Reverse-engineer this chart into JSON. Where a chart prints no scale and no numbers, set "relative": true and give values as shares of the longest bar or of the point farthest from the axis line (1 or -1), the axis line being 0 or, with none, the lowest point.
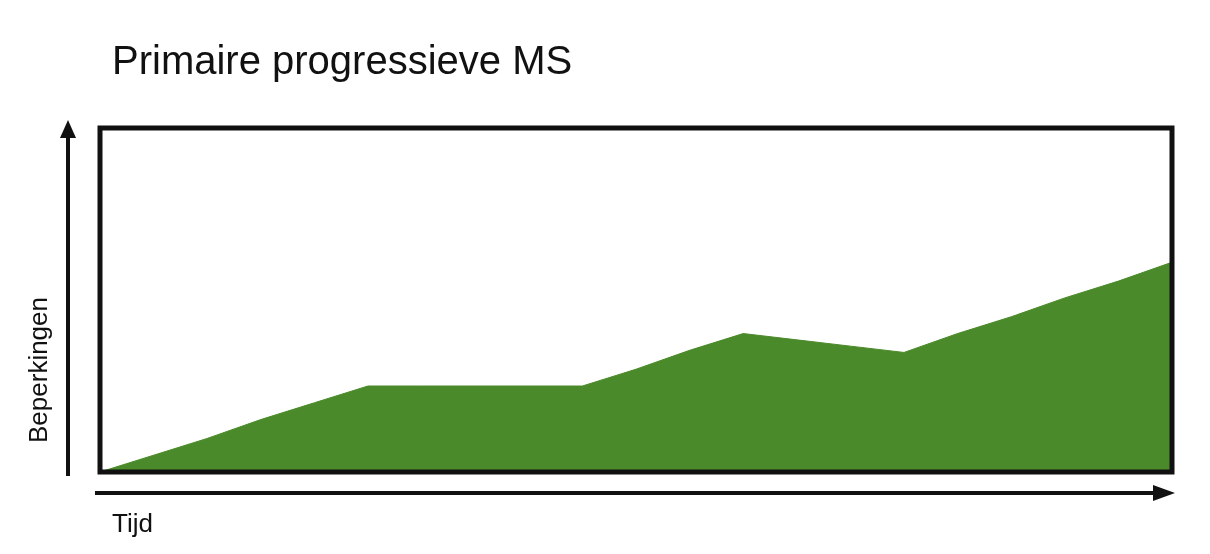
{
  "chart_data": {
    "type": "area",
    "title": "Primaire progressieve MS",
    "xlabel": "Tijd",
    "ylabel": "Beperkingen",
    "relative": true,
    "categories": [
      null,
      null,
      null,
      null,
      null,
      null,
      null,
      null,
      null,
      null,
      null,
      null,
      null,
      null,
      null,
      null,
      null,
      null,
      null,
      null,
      null
    ],
    "series": [
      {
        "color": "#4a8a2a",
        "values": [
          0,
          0.08,
          0.16,
          0.25,
          0.33,
          0.41,
          0.41,
          0.41,
          0.41,
          0.41,
          0.49,
          0.58,
          0.66,
          0.63,
          0.6,
          0.57,
          0.66,
          0.74,
          0.83,
          0.91,
          1
        ]
      }
    ],
    "legend": false,
    "marker": "none"
  }
}
